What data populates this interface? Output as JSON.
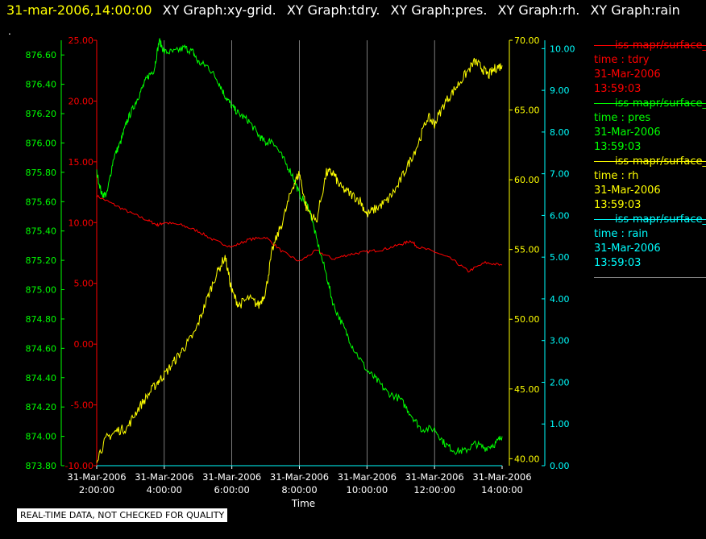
{
  "header": {
    "timestamp": "31-mar-2006,14:00:00",
    "graphs": [
      "XY Graph:xy-grid.",
      "XY Graph:tdry.",
      "XY Graph:pres.",
      "XY Graph:rh.",
      "XY Graph:rain"
    ],
    "dot": "."
  },
  "footer": {
    "notice": "REAL-TIME DATA, NOT CHECKED FOR QUALITY"
  },
  "colors": {
    "tdry": "#ff0000",
    "pres": "#00ff00",
    "rh": "#ffff00",
    "rain": "#00ffff",
    "grid": "#ffffff",
    "background": "#000000"
  },
  "legend": [
    {
      "source": "iss-mapr/surface_",
      "var": "time : tdry",
      "date": "31-Mar-2006",
      "time": "13:59:03",
      "color": "#ff0000"
    },
    {
      "source": "iss-mapr/surface_",
      "var": "time : pres",
      "date": "31-Mar-2006",
      "time": "13:59:03",
      "color": "#00ff00"
    },
    {
      "source": "iss-mapr/surface_",
      "var": "time : rh",
      "date": "31-Mar-2006",
      "time": "13:59:03",
      "color": "#ffff00"
    },
    {
      "source": "iss-mapr/surface_",
      "var": "time : rain",
      "date": "31-Mar-2006",
      "time": "13:59:03",
      "color": "#00ffff"
    }
  ],
  "chart_data": {
    "type": "line",
    "xlabel": "Time",
    "x_range_hours": [
      2,
      14
    ],
    "x_ticks": [
      {
        "date": "31-Mar-2006",
        "time": "2:00:00"
      },
      {
        "date": "31-Mar-2006",
        "time": "4:00:00"
      },
      {
        "date": "31-Mar-2006",
        "time": "6:00:00"
      },
      {
        "date": "31-Mar-2006",
        "time": "8:00:00"
      },
      {
        "date": "31-Mar-2006",
        "time": "10:00:00"
      },
      {
        "date": "31-Mar-2006",
        "time": "12:00:00"
      },
      {
        "date": "31-Mar-2006",
        "time": "14:00:00"
      }
    ],
    "grid": "vertical",
    "axes": {
      "pres": {
        "side": "left-outer",
        "ylim": [
          873.8,
          876.7
        ],
        "ticks": [
          "873.80",
          "874.00",
          "874.20",
          "874.40",
          "874.60",
          "874.80",
          "875.00",
          "875.20",
          "875.40",
          "875.60",
          "875.80",
          "876.00",
          "876.20",
          "876.40",
          "876.60"
        ],
        "color": "#00ff00"
      },
      "tdry": {
        "side": "left-inner",
        "ylim": [
          -10,
          25
        ],
        "ticks": [
          "-10.00",
          "-5.00",
          "0.00",
          "5.00",
          "10.00",
          "15.00",
          "20.00",
          "25.00"
        ],
        "color": "#ff0000"
      },
      "rh": {
        "side": "right-inner",
        "ylim": [
          39.5,
          70
        ],
        "ticks": [
          "40.00",
          "45.00",
          "50.00",
          "55.00",
          "60.00",
          "65.00",
          "70.00"
        ],
        "color": "#ffff00"
      },
      "rain": {
        "side": "right-outer",
        "ylim": [
          0,
          10.2
        ],
        "ticks": [
          "0.00",
          "1.00",
          "2.00",
          "3.00",
          "4.00",
          "5.00",
          "6.00",
          "7.00",
          "8.00",
          "9.00",
          "10.00"
        ],
        "color": "#00ffff"
      }
    },
    "series": [
      {
        "key": "tdry",
        "axis": "tdry",
        "x": [
          2.0,
          2.5,
          3.0,
          3.5,
          3.8,
          4.0,
          4.5,
          5.0,
          5.5,
          6.0,
          6.5,
          7.0,
          7.5,
          8.0,
          8.5,
          9.0,
          9.5,
          10.0,
          10.5,
          11.0,
          11.3,
          11.5,
          12.0,
          12.5,
          13.0,
          13.5,
          14.0
        ],
        "y": [
          12.2,
          11.5,
          10.8,
          10.2,
          9.8,
          10.0,
          9.8,
          9.3,
          8.5,
          8.0,
          8.6,
          8.8,
          7.6,
          6.8,
          7.7,
          7.0,
          7.4,
          7.6,
          7.8,
          8.2,
          8.5,
          8.0,
          7.6,
          7.0,
          6.0,
          6.7,
          6.5
        ]
      },
      {
        "key": "pres",
        "axis": "pres",
        "x": [
          2.0,
          2.15,
          2.3,
          2.5,
          2.7,
          2.9,
          3.1,
          3.3,
          3.5,
          3.7,
          3.85,
          4.0,
          4.3,
          4.6,
          4.85,
          5.0,
          5.3,
          5.6,
          5.8,
          6.0,
          6.2,
          6.5,
          6.8,
          7.0,
          7.2,
          7.5,
          7.8,
          8.0,
          8.3,
          8.5,
          8.8,
          9.0,
          9.3,
          9.6,
          10.0,
          10.3,
          10.6,
          11.0,
          11.3,
          11.6,
          12.0,
          12.3,
          12.6,
          12.9,
          13.2,
          13.5,
          13.8,
          14.0
        ],
        "y": [
          875.8,
          875.65,
          875.65,
          875.9,
          876.0,
          876.15,
          876.25,
          876.35,
          876.45,
          876.5,
          876.7,
          876.62,
          876.62,
          876.65,
          876.62,
          876.55,
          876.52,
          876.42,
          876.32,
          876.25,
          876.2,
          876.15,
          876.05,
          876.0,
          876.02,
          875.9,
          875.78,
          875.65,
          875.55,
          875.35,
          875.1,
          874.9,
          874.75,
          874.6,
          874.45,
          874.38,
          874.3,
          874.25,
          874.15,
          874.05,
          874.05,
          873.95,
          873.9,
          873.9,
          873.95,
          873.92,
          873.95,
          874.0
        ]
      },
      {
        "key": "rh",
        "axis": "rh",
        "x": [
          2.0,
          2.3,
          2.6,
          2.9,
          3.2,
          3.5,
          3.8,
          4.0,
          4.3,
          4.6,
          4.9,
          5.2,
          5.5,
          5.8,
          6.0,
          6.2,
          6.5,
          6.8,
          7.0,
          7.2,
          7.5,
          7.8,
          8.0,
          8.2,
          8.5,
          8.8,
          9.0,
          9.2,
          9.5,
          9.8,
          10.0,
          10.3,
          10.6,
          10.9,
          11.2,
          11.5,
          11.8,
          12.0,
          12.3,
          12.6,
          12.9,
          13.2,
          13.4,
          13.6,
          13.8,
          14.0
        ],
        "y": [
          40.0,
          41.5,
          42.0,
          42.2,
          43.5,
          44.5,
          45.5,
          46.0,
          47.0,
          48.0,
          49.0,
          51.0,
          53.0,
          54.5,
          52.0,
          51.0,
          51.5,
          51.0,
          52.0,
          55.0,
          57.0,
          59.5,
          60.5,
          58.0,
          57.0,
          60.5,
          60.5,
          59.5,
          59.0,
          58.5,
          57.5,
          58.0,
          58.5,
          59.5,
          61.0,
          62.5,
          64.5,
          64.0,
          65.5,
          66.5,
          67.5,
          68.5,
          68.0,
          67.5,
          68.0,
          68.2
        ]
      },
      {
        "key": "rain",
        "axis": "rain",
        "x": [
          2.0,
          14.0
        ],
        "y": [
          0.0,
          0.0
        ]
      }
    ]
  }
}
